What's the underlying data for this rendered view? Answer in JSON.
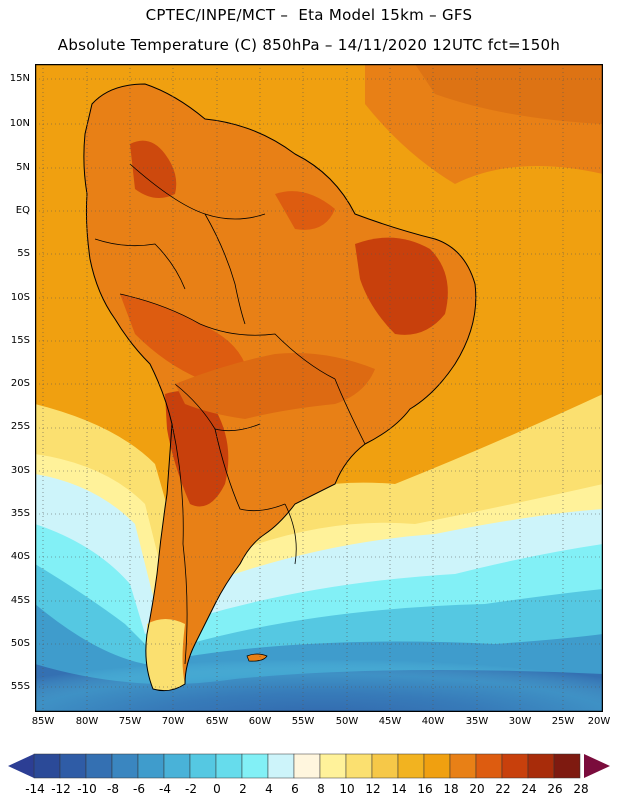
{
  "header": {
    "line1": "CPTEC/INPE/MCT –  Eta Model 15km – GFS",
    "line2": "Absolute Temperature (C) 850hPa – 14/11/2020 12UTC fct=150h"
  },
  "map": {
    "lat_labels": [
      "15N",
      "10N",
      "5N",
      "EQ",
      "5S",
      "10S",
      "15S",
      "20S",
      "25S",
      "30S",
      "35S",
      "40S",
      "45S",
      "50S",
      "55S"
    ],
    "lon_labels": [
      "85W",
      "80W",
      "75W",
      "70W",
      "65W",
      "60W",
      "55W",
      "50W",
      "45W",
      "40W",
      "35W",
      "30W",
      "25W",
      "20W"
    ]
  },
  "colorbar": {
    "labels": [
      "-14",
      "-12",
      "-10",
      "-8",
      "-6",
      "-4",
      "-2",
      "0",
      "2",
      "4",
      "6",
      "8",
      "10",
      "12",
      "14",
      "16",
      "18",
      "20",
      "22",
      "24",
      "26",
      "28"
    ],
    "low_arrow_color": "#2c3e94",
    "high_arrow_color": "#7a0c3c",
    "colors": [
      "#2b4a98",
      "#2f5ca6",
      "#3470b2",
      "#3a86c0",
      "#3f9ccc",
      "#49b2d8",
      "#55c8e2",
      "#66dcec",
      "#82f0f6",
      "#cdf4fa",
      "#fff6de",
      "#fff29a",
      "#fbe070",
      "#f6c848",
      "#f2b320",
      "#f0a010",
      "#e88016",
      "#dd5c10",
      "#c8400c",
      "#a82c0a",
      "#7e1a10"
    ]
  }
}
